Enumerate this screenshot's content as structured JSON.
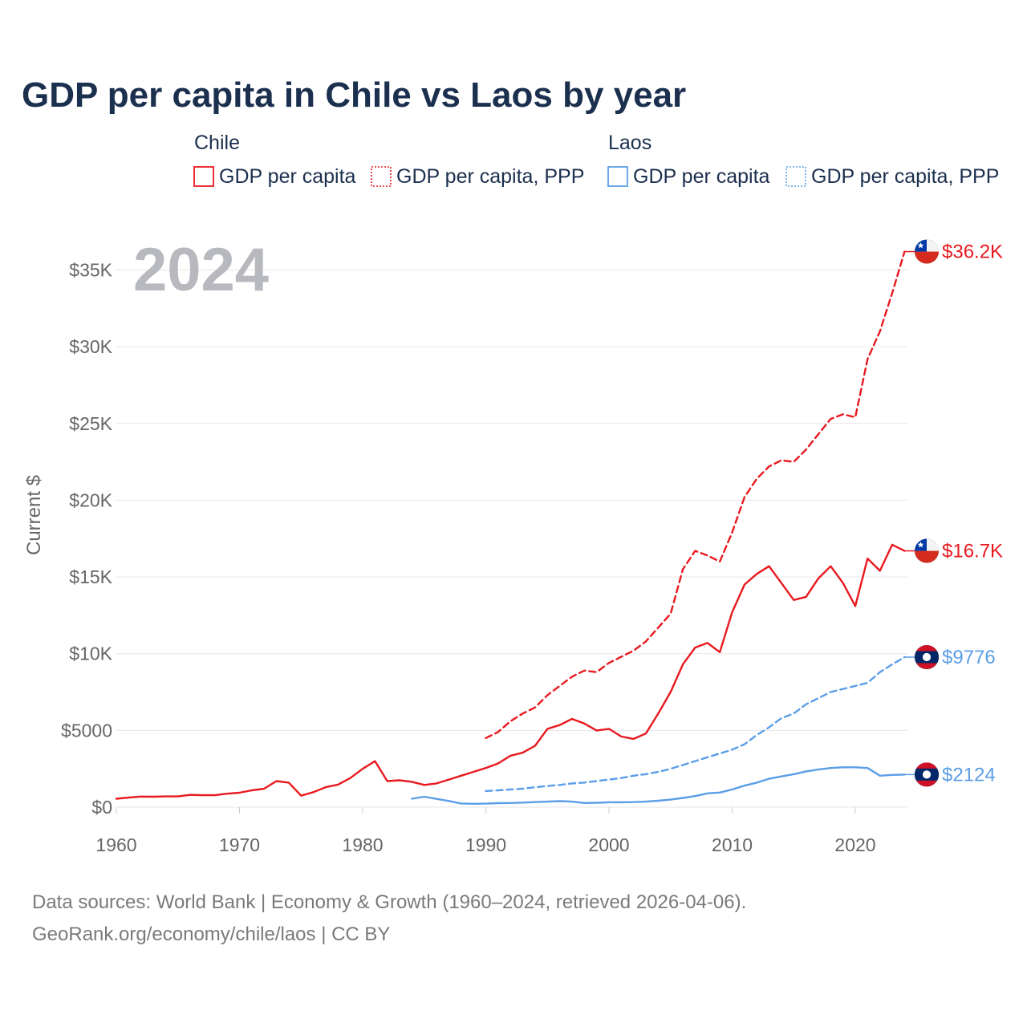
{
  "chart_data": {
    "type": "line",
    "title": "GDP per capita in Chile vs Laos by year",
    "current_year": "2024",
    "ylabel": "Current $",
    "xlabel": "",
    "xlim": [
      1960,
      2024
    ],
    "ylim": [
      0,
      37000
    ],
    "y_ticks": [
      0,
      5000,
      10000,
      15000,
      20000,
      25000,
      30000,
      35000
    ],
    "y_tick_labels": [
      "$0",
      "$5000",
      "$10K",
      "$15K",
      "$20K",
      "$25K",
      "$30K",
      "$35K"
    ],
    "x_ticks": [
      1960,
      1970,
      1980,
      1990,
      2000,
      2010,
      2020
    ],
    "x_tick_labels": [
      "1960",
      "1970",
      "1980",
      "1990",
      "2000",
      "2010",
      "2020"
    ],
    "legend": {
      "groups": [
        {
          "country": "Chile",
          "color": "#e8191f",
          "items": [
            "GDP per capita",
            "GDP per capita, PPP"
          ]
        },
        {
          "country": "Laos",
          "color": "#5b9ee8",
          "items": [
            "GDP per capita",
            "GDP per capita, PPP"
          ]
        }
      ]
    },
    "series": [
      {
        "name": "Chile GDP per capita",
        "country": "Chile",
        "style": "solid",
        "color": "#e8191f",
        "flag": "chile",
        "end_label": "$16.7K",
        "x": [
          1960,
          1961,
          1962,
          1963,
          1964,
          1965,
          1966,
          1967,
          1968,
          1969,
          1970,
          1971,
          1972,
          1973,
          1974,
          1975,
          1976,
          1977,
          1978,
          1979,
          1980,
          1981,
          1982,
          1983,
          1984,
          1985,
          1986,
          1987,
          1988,
          1989,
          1990,
          1991,
          1992,
          1993,
          1994,
          1995,
          1996,
          1997,
          1998,
          1999,
          2000,
          2001,
          2002,
          2003,
          2004,
          2005,
          2006,
          2007,
          2008,
          2009,
          2010,
          2011,
          2012,
          2013,
          2014,
          2015,
          2016,
          2017,
          2018,
          2019,
          2020,
          2021,
          2022,
          2023,
          2024
        ],
        "values": [
          550,
          620,
          690,
          680,
          700,
          700,
          800,
          780,
          780,
          880,
          940,
          1100,
          1200,
          1700,
          1600,
          750,
          980,
          1300,
          1470,
          1900,
          2500,
          3000,
          1700,
          1750,
          1650,
          1450,
          1550,
          1800,
          2050,
          2300,
          2550,
          2850,
          3350,
          3550,
          4000,
          5100,
          5350,
          5750,
          5450,
          5000,
          5100,
          4600,
          4450,
          4800,
          6100,
          7500,
          9300,
          10400,
          10700,
          10100,
          12700,
          14500,
          15200,
          15700,
          14600,
          13500,
          13700,
          14900,
          15700,
          14600,
          13100,
          16200,
          15400,
          17100,
          16700
        ]
      },
      {
        "name": "Chile GDP per capita, PPP",
        "country": "Chile",
        "style": "dashed",
        "color": "#e8191f",
        "flag": "chile",
        "end_label": "$36.2K",
        "x": [
          1990,
          1991,
          1992,
          1993,
          1994,
          1995,
          1996,
          1997,
          1998,
          1999,
          2000,
          2001,
          2002,
          2003,
          2004,
          2005,
          2006,
          2007,
          2008,
          2009,
          2010,
          2011,
          2012,
          2013,
          2014,
          2015,
          2016,
          2017,
          2018,
          2019,
          2020,
          2021,
          2022,
          2023,
          2024
        ],
        "values": [
          4500,
          4900,
          5600,
          6100,
          6500,
          7300,
          7900,
          8500,
          8900,
          8800,
          9400,
          9800,
          10200,
          10800,
          11700,
          12600,
          15500,
          16700,
          16400,
          16000,
          17900,
          20200,
          21400,
          22200,
          22600,
          22500,
          23300,
          24300,
          25300,
          25600,
          25400,
          29200,
          31000,
          33500,
          36200
        ]
      },
      {
        "name": "Laos GDP per capita",
        "country": "Laos",
        "style": "solid",
        "color": "#5b9ee8",
        "flag": "laos",
        "end_label": "$2124",
        "x": [
          1984,
          1985,
          1986,
          1987,
          1988,
          1989,
          1990,
          1991,
          1992,
          1993,
          1994,
          1995,
          1996,
          1997,
          1998,
          1999,
          2000,
          2001,
          2002,
          2003,
          2004,
          2005,
          2006,
          2007,
          2008,
          2009,
          2010,
          2011,
          2012,
          2013,
          2014,
          2015,
          2016,
          2017,
          2018,
          2019,
          2020,
          2021,
          2022,
          2023,
          2024
        ],
        "values": [
          550,
          680,
          540,
          400,
          240,
          220,
          230,
          260,
          270,
          300,
          330,
          360,
          390,
          360,
          270,
          290,
          320,
          320,
          330,
          360,
          420,
          490,
          600,
          720,
          900,
          950,
          1150,
          1400,
          1600,
          1850,
          2000,
          2150,
          2330,
          2450,
          2550,
          2600,
          2600,
          2550,
          2050,
          2100,
          2124
        ]
      },
      {
        "name": "Laos GDP per capita, PPP",
        "country": "Laos",
        "style": "dashed",
        "color": "#5b9ee8",
        "flag": "laos",
        "end_label": "$9776",
        "x": [
          1990,
          1991,
          1992,
          1993,
          1994,
          1995,
          1996,
          1997,
          1998,
          1999,
          2000,
          2001,
          2002,
          2003,
          2004,
          2005,
          2006,
          2007,
          2008,
          2009,
          2010,
          2011,
          2012,
          2013,
          2014,
          2015,
          2016,
          2017,
          2018,
          2019,
          2020,
          2021,
          2022,
          2023,
          2024
        ],
        "values": [
          1050,
          1100,
          1150,
          1200,
          1300,
          1380,
          1450,
          1550,
          1600,
          1700,
          1800,
          1900,
          2050,
          2150,
          2300,
          2500,
          2750,
          3000,
          3250,
          3500,
          3750,
          4100,
          4700,
          5200,
          5800,
          6100,
          6700,
          7100,
          7500,
          7700,
          7900,
          8100,
          8800,
          9300,
          9776
        ]
      }
    ]
  },
  "footer": {
    "source_line": "Data sources: World Bank | Economy & Growth (1960–2024, retrieved 2026-04-06).",
    "credit_line": "GeoRank.org/economy/chile/laos | CC BY"
  }
}
